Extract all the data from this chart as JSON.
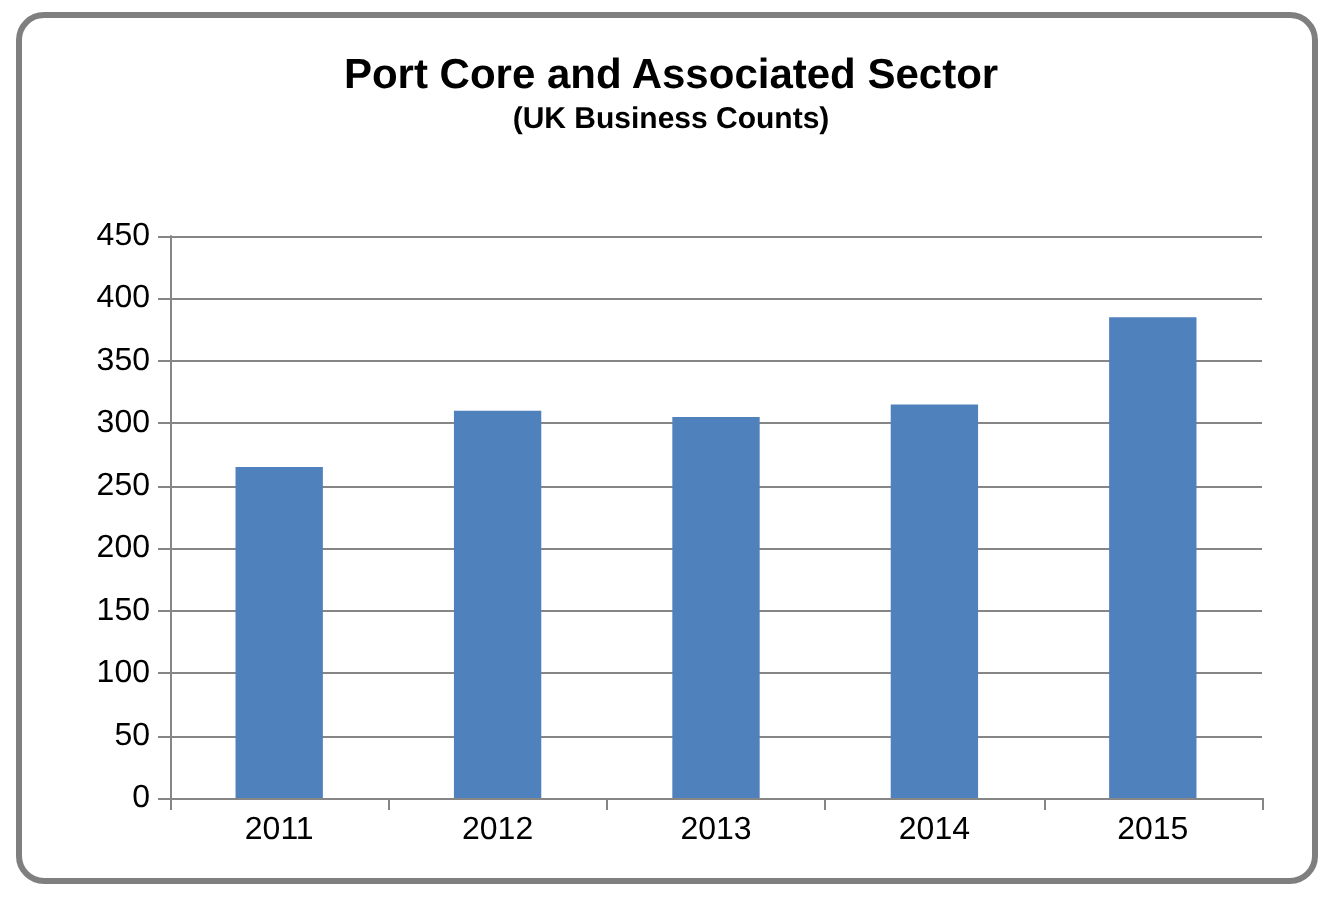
{
  "chart_data": {
    "type": "bar",
    "title": "Port Core and Associated Sector",
    "subtitle": "(UK Business Counts)",
    "categories": [
      "2011",
      "2012",
      "2013",
      "2014",
      "2015"
    ],
    "values": [
      265,
      310,
      305,
      315,
      385
    ],
    "color": "#4f81bd",
    "ylim": [
      0,
      450
    ],
    "yticks": [
      0,
      50,
      100,
      150,
      200,
      250,
      300,
      350,
      400,
      450
    ],
    "grid": "y"
  }
}
